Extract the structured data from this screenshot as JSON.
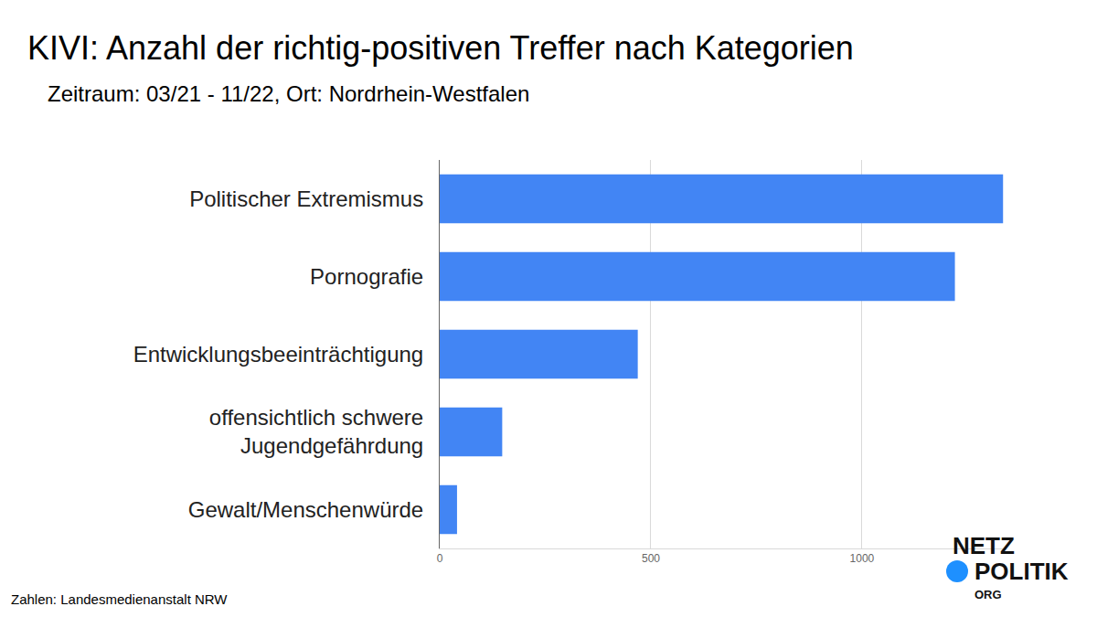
{
  "chart_data": {
    "type": "bar",
    "orientation": "horizontal",
    "title": "KIVI: Anzahl der richtig-positiven Treffer nach Kategorien",
    "subtitle": "Zeitraum: 03/21 - 11/22, Ort: Nordrhein-Westfalen",
    "source": "Zahlen: Landesmedienanstalt NRW",
    "logo": [
      "NETZ",
      "POLITIK",
      "ORG"
    ],
    "categories": [
      "Politischer Extremismus",
      "Pornografie",
      "Entwicklungsbeeinträchtigung",
      "offensichtlich schwere\nJugendgefährdung",
      "Gewalt/Menschenwürde"
    ],
    "values": [
      1334,
      1220,
      469,
      148,
      41
    ],
    "color": "#4285f4",
    "xlim": [
      0,
      1340
    ],
    "xticks": [
      0,
      500,
      1000
    ],
    "grid": true
  }
}
